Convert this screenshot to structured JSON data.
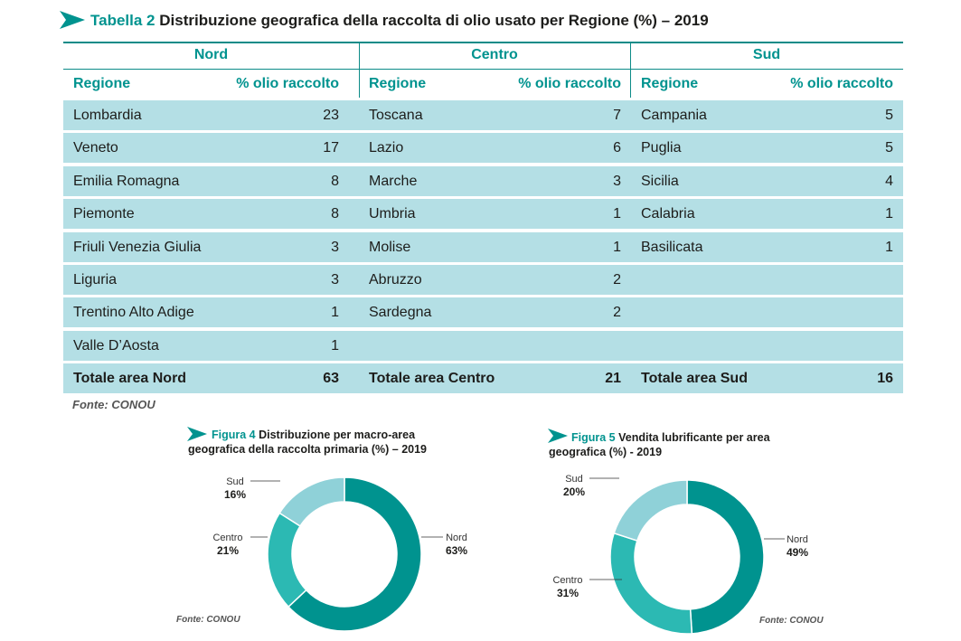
{
  "table": {
    "number_label": "Tabella 2",
    "title": "Distribuzione geografica della raccolta di olio usato per Regione (%) – 2019",
    "col_region": "Regione",
    "col_percent": "% olio raccolto",
    "groups": [
      {
        "name": "Nord",
        "rows": [
          {
            "region": "Lombardia",
            "value": "23"
          },
          {
            "region": "Veneto",
            "value": "17"
          },
          {
            "region": "Emilia Romagna",
            "value": "8"
          },
          {
            "region": "Piemonte",
            "value": "8"
          },
          {
            "region": "Friuli Venezia Giulia",
            "value": "3"
          },
          {
            "region": "Liguria",
            "value": "3"
          },
          {
            "region": "Trentino Alto Adige",
            "value": "1"
          },
          {
            "region": "Valle D’Aosta",
            "value": "1"
          }
        ],
        "total_label": "Totale area Nord",
        "total_value": "63"
      },
      {
        "name": "Centro",
        "rows": [
          {
            "region": "Toscana",
            "value": "7"
          },
          {
            "region": "Lazio",
            "value": "6"
          },
          {
            "region": "Marche",
            "value": "3"
          },
          {
            "region": "Umbria",
            "value": "1"
          },
          {
            "region": "Molise",
            "value": "1"
          },
          {
            "region": "Abruzzo",
            "value": "2"
          },
          {
            "region": "Sardegna",
            "value": "2"
          }
        ],
        "total_label": "Totale area Centro",
        "total_value": "21"
      },
      {
        "name": "Sud",
        "rows": [
          {
            "region": "Campania",
            "value": "5"
          },
          {
            "region": "Puglia",
            "value": "5"
          },
          {
            "region": "Sicilia",
            "value": "4"
          },
          {
            "region": "Calabria",
            "value": "1"
          },
          {
            "region": "Basilicata",
            "value": "1"
          }
        ],
        "total_label": "Totale area Sud",
        "total_value": "16"
      }
    ],
    "source": "Fonte: CONOU"
  },
  "colors": {
    "accent": "#00938f",
    "row_bg": "#b4dfe5",
    "nord": "#00938f",
    "centro": "#2cb9b3",
    "sud": "#8fd1d8"
  },
  "chart_data": [
    {
      "type": "pie",
      "number_label": "Figura 4",
      "title_line1": "Distribuzione per macro-area",
      "title_line2": "geografica della raccolta primaria (%) – 2019",
      "categories": [
        "Nord",
        "Centro",
        "Sud"
      ],
      "values": [
        63,
        21,
        16
      ],
      "value_labels": [
        "63%",
        "21%",
        "16%"
      ],
      "source": "Fonte: CONOU"
    },
    {
      "type": "pie",
      "number_label": "Figura 5",
      "title_line1": "Vendita lubrificante per area",
      "title_line2": "geografica (%) - 2019",
      "categories": [
        "Nord",
        "Centro",
        "Sud"
      ],
      "values": [
        49,
        31,
        20
      ],
      "value_labels": [
        "49%",
        "31%",
        "20%"
      ],
      "source": "Fonte: CONOU"
    }
  ]
}
